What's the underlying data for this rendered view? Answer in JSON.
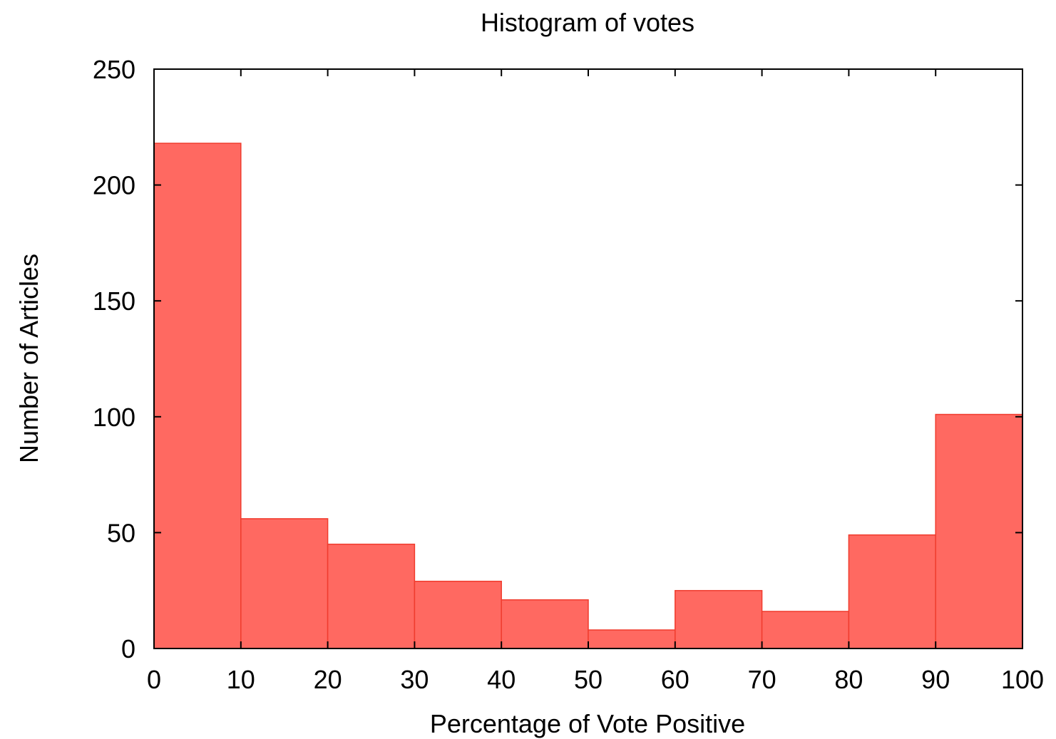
{
  "chart_data": {
    "type": "bar",
    "title": "Histogram of votes",
    "xlabel": "Percentage of Vote Positive",
    "ylabel": "Number of Articles",
    "bins": [
      {
        "x0": 0,
        "x1": 10,
        "value": 218
      },
      {
        "x0": 10,
        "x1": 20,
        "value": 56
      },
      {
        "x0": 20,
        "x1": 30,
        "value": 45
      },
      {
        "x0": 30,
        "x1": 40,
        "value": 29
      },
      {
        "x0": 40,
        "x1": 50,
        "value": 21
      },
      {
        "x0": 50,
        "x1": 60,
        "value": 8
      },
      {
        "x0": 60,
        "x1": 70,
        "value": 25
      },
      {
        "x0": 70,
        "x1": 80,
        "value": 16
      },
      {
        "x0": 80,
        "x1": 90,
        "value": 49
      },
      {
        "x0": 90,
        "x1": 100,
        "value": 101
      }
    ],
    "xlim": [
      0,
      100
    ],
    "ylim": [
      0,
      250
    ],
    "x_ticks": [
      "0",
      "10",
      "20",
      "30",
      "40",
      "50",
      "60",
      "70",
      "80",
      "90",
      "100"
    ],
    "y_ticks": [
      "0",
      "50",
      "100",
      "150",
      "200",
      "250"
    ],
    "grid": false,
    "legend": "none",
    "bar_color": "#ff6961",
    "bar_edge_color": "#f03c2e",
    "axis_color": "#000000"
  }
}
